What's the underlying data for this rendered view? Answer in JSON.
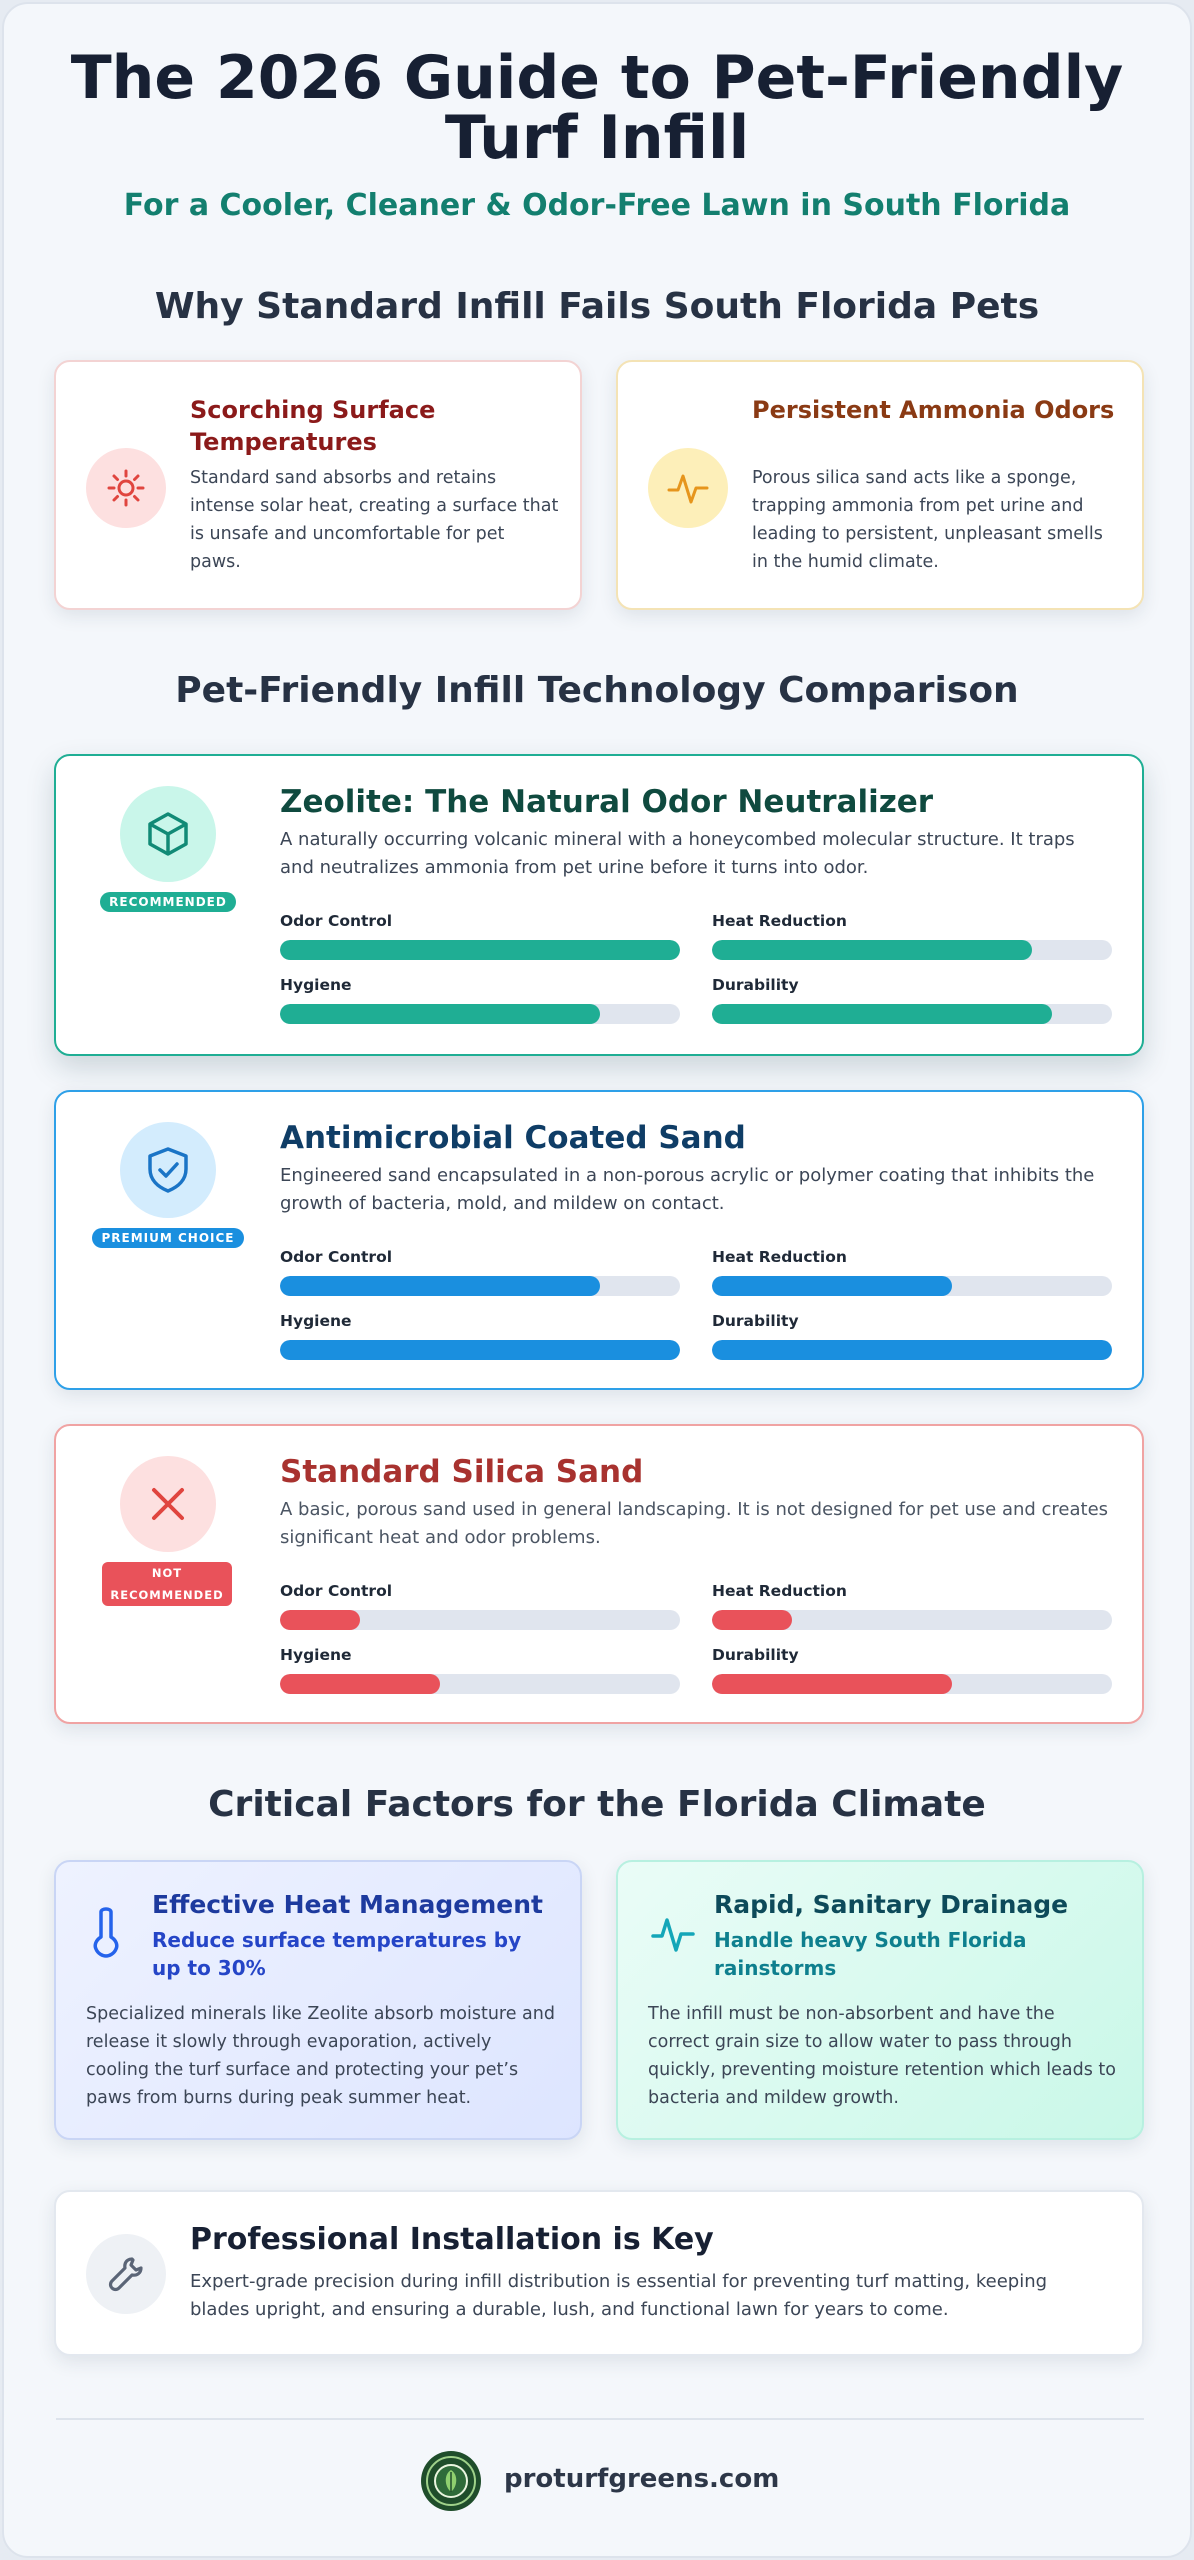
{
  "header": {
    "title": "The 2026 Guide to Pet-Friendly Turf Infill",
    "subtitle": "For a Cooler, Cleaner & Odor-Free Lawn in South Florida"
  },
  "failures": {
    "heading": "Why Standard Infill Fails South Florida Pets",
    "items": [
      {
        "title": "Scorching Surface Temperatures",
        "icon": "sun-icon",
        "color": "#8b1a1a",
        "text": "Standard sand absorbs and retains intense solar heat, creating a surface that is unsafe and uncomfortable for pet paws."
      },
      {
        "title": "Persistent Ammonia Odors",
        "icon": "pulse-icon",
        "color": "#8a3a14",
        "text": "Porous silica sand acts like a sponge, trapping ammonia from pet urine and leading to persistent, unpleasant smells in the humid climate."
      }
    ]
  },
  "comparison": {
    "heading": "Pet-Friendly Infill Technology Comparison",
    "metric_labels": [
      "Odor Control",
      "Heat Reduction",
      "Hygiene",
      "Durability"
    ],
    "items": [
      {
        "title": "Zeolite: The Natural Odor Neutralizer",
        "badge": "RECOMMENDED",
        "icon": "cube-icon",
        "accent": "#1fae94",
        "title_color": "#0f4a3f",
        "desc": "A naturally occurring volcanic mineral with a honeycombed molecular structure. It traps and neutralizes ammonia from pet urine before it turns into odor.",
        "scores": [
          1.0,
          0.8,
          0.8,
          0.85
        ]
      },
      {
        "title": "Antimicrobial Coated Sand",
        "badge": "PREMIUM CHOICE",
        "icon": "shield-check-icon",
        "accent": "#1a8fdf",
        "title_color": "#0f3d66",
        "desc": "Engineered sand encapsulated in a non-porous acrylic or polymer coating that inhibits the growth of bacteria, mold, and mildew on contact.",
        "scores": [
          0.8,
          0.6,
          1.0,
          1.0
        ]
      },
      {
        "title": "Standard Silica Sand",
        "badge": "NOT RECOMMENDED",
        "icon": "x-icon",
        "accent": "#e9525a",
        "title_color": "#a8322f",
        "desc": "A basic, porous sand used in general landscaping. It is not designed for pet use and creates significant heat and odor problems.",
        "scores": [
          0.2,
          0.2,
          0.4,
          0.6
        ]
      }
    ]
  },
  "factors": {
    "heading": "Critical Factors for the Florida Climate",
    "items": [
      {
        "title": "Effective Heat Management",
        "subtitle": "Reduce surface temperatures by up to 30%",
        "icon": "thermometer-icon",
        "text": "Specialized minerals like Zeolite absorb moisture and release it slowly through evaporation, actively cooling the turf surface and protecting your pet’s paws from burns during peak summer heat."
      },
      {
        "title": "Rapid, Sanitary Drainage",
        "subtitle": "Handle heavy South Florida rainstorms",
        "icon": "pulse-icon",
        "text": "The infill must be non-absorbent and have the correct grain size to allow water to pass through quickly, preventing moisture retention which leads to bacteria and mildew growth."
      }
    ]
  },
  "installation": {
    "title": "Professional Installation is Key",
    "icon": "wrench-icon",
    "text": "Expert-grade precision during infill distribution is essential for preventing turf matting, keeping blades upright, and ensuring a durable, lush, and functional lawn for years to come."
  },
  "footer": {
    "logo": "leaf-logo-icon",
    "site": "proturfgreens.com"
  }
}
